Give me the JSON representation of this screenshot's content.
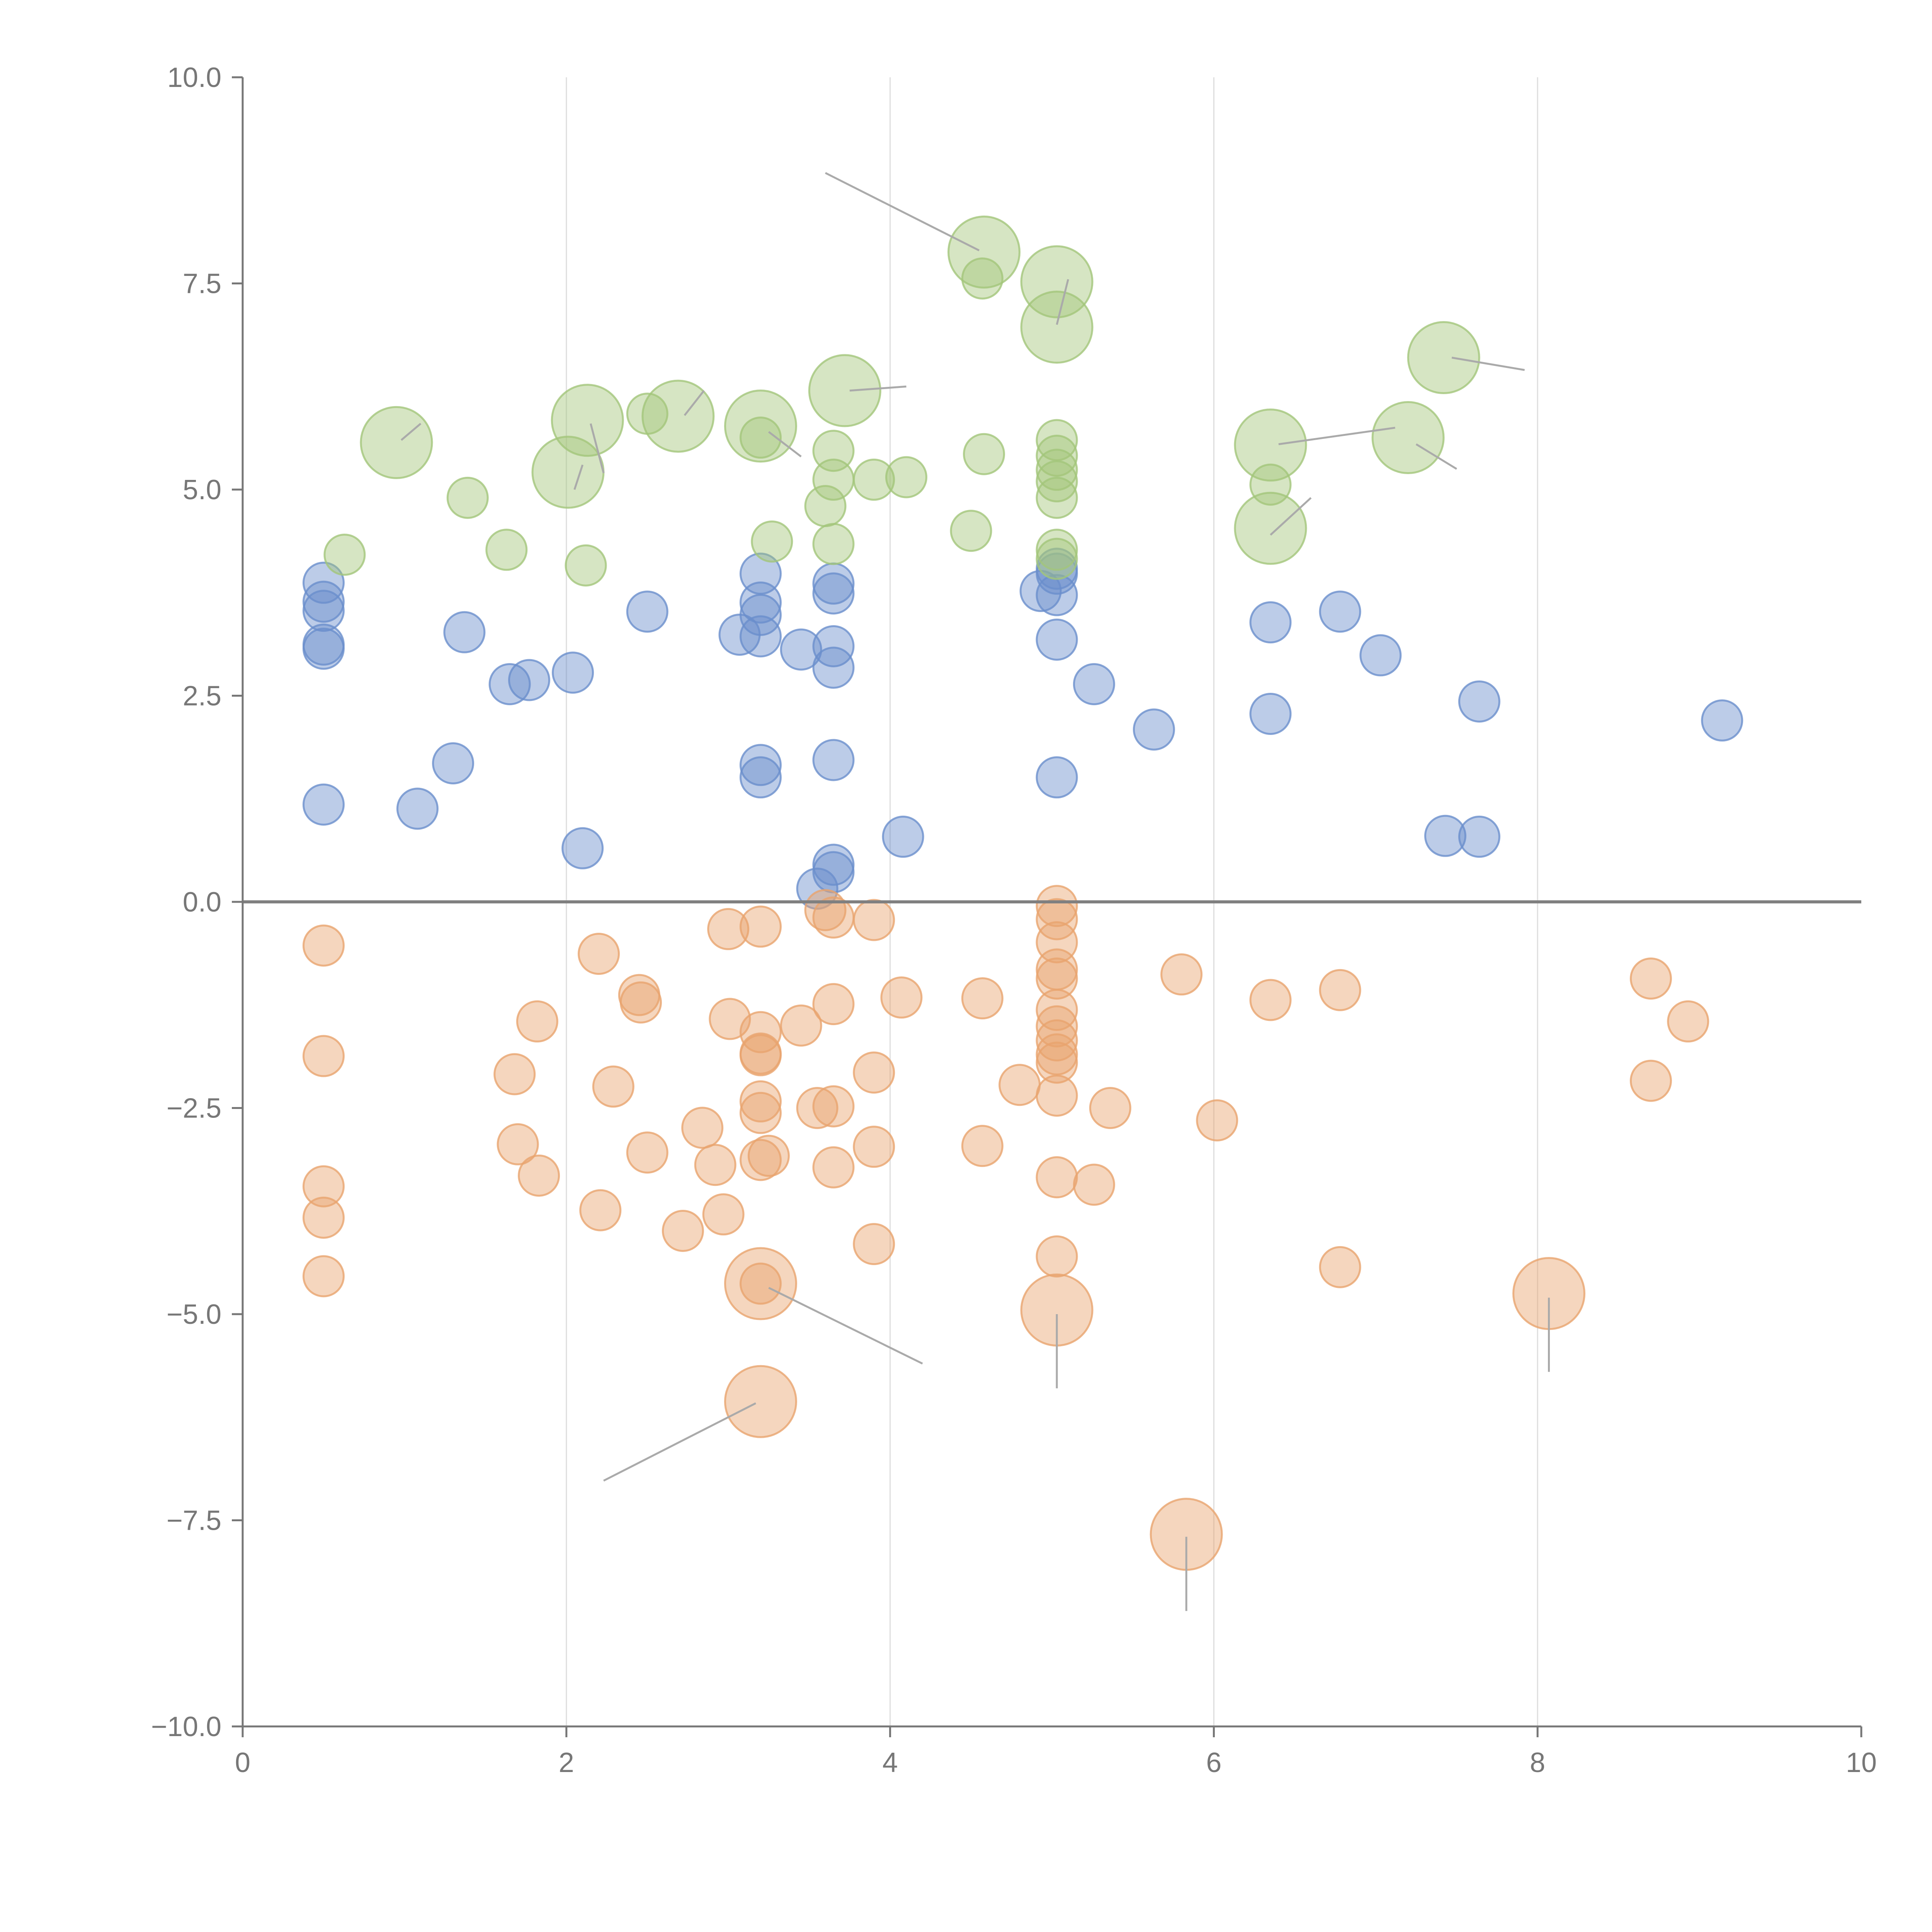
{
  "colors": {
    "blue": "#6a8fcc",
    "green": "#a3c67a",
    "orange": "#e9a46e",
    "axis": "#777777",
    "grid": "#dddddd",
    "zero_line": "#808080",
    "leader": "#aaaaaa"
  },
  "chart_data": {
    "type": "scatter",
    "title": "",
    "xlabel": "",
    "ylabel": "",
    "xlim": [
      0,
      10
    ],
    "ylim": [
      -10,
      10
    ],
    "x_ticks": [
      0,
      2,
      4,
      6,
      8,
      10
    ],
    "x_tick_labels": [
      "0",
      "2",
      "4",
      "6",
      "8",
      "10"
    ],
    "y_ticks": [
      10,
      7.5,
      5,
      2.5,
      0,
      -2.5,
      -5,
      -7.5,
      -10
    ],
    "y_tick_labels": [
      "10.0",
      "7.5",
      "5.0",
      "2.5",
      "0.0",
      "−2.5",
      "−5.0",
      "−7.5",
      "−10.0"
    ],
    "grid": "vertical",
    "reference_line_y": 0,
    "series": [
      {
        "name": "blue",
        "color_key": "blue",
        "points": [
          [
            0.5,
            3.87,
            1
          ],
          [
            0.5,
            3.64,
            1
          ],
          [
            0.5,
            3.53,
            1
          ],
          [
            0.5,
            3.12,
            1
          ],
          [
            0.5,
            3.07,
            1
          ],
          [
            0.5,
            1.18,
            1
          ],
          [
            1.08,
            1.13,
            1
          ],
          [
            1.3,
            1.68,
            1
          ],
          [
            1.37,
            3.27,
            1
          ],
          [
            1.65,
            2.64,
            1
          ],
          [
            1.77,
            2.69,
            1
          ],
          [
            2.04,
            2.78,
            1
          ],
          [
            2.1,
            0.65,
            1
          ],
          [
            2.5,
            3.52,
            1
          ],
          [
            3.07,
            3.24,
            1
          ],
          [
            3.2,
            3.98,
            1
          ],
          [
            3.2,
            3.63,
            1
          ],
          [
            3.2,
            3.48,
            1
          ],
          [
            3.2,
            3.22,
            1
          ],
          [
            3.2,
            1.66,
            1
          ],
          [
            3.2,
            1.51,
            1
          ],
          [
            3.45,
            3.06,
            1
          ],
          [
            3.55,
            0.16,
            1
          ],
          [
            3.65,
            3.86,
            1
          ],
          [
            3.65,
            3.74,
            1
          ],
          [
            3.65,
            3.1,
            1
          ],
          [
            3.65,
            2.84,
            1
          ],
          [
            3.65,
            1.72,
            1
          ],
          [
            3.65,
            0.45,
            1
          ],
          [
            3.65,
            0.36,
            1
          ],
          [
            4.08,
            0.79,
            1
          ],
          [
            4.93,
            3.77,
            1
          ],
          [
            5.03,
            4.04,
            1
          ],
          [
            5.03,
            3.98,
            1
          ],
          [
            5.03,
            3.72,
            1
          ],
          [
            5.03,
            3.18,
            1
          ],
          [
            5.03,
            1.51,
            1
          ],
          [
            5.26,
            2.64,
            1
          ],
          [
            5.63,
            2.09,
            1
          ],
          [
            6.35,
            3.39,
            1
          ],
          [
            6.35,
            2.28,
            1
          ],
          [
            6.78,
            3.52,
            1
          ],
          [
            7.03,
            2.99,
            1
          ],
          [
            7.43,
            0.8,
            1
          ],
          [
            7.64,
            0.79,
            1
          ],
          [
            7.64,
            2.43,
            1
          ],
          [
            9.14,
            2.2,
            1
          ]
        ]
      },
      {
        "name": "green",
        "color_key": "green",
        "points": [
          [
            0.63,
            4.21,
            1
          ],
          [
            0.95,
            5.57,
            2
          ],
          [
            1.39,
            4.9,
            1
          ],
          [
            1.63,
            4.27,
            1
          ],
          [
            2.01,
            5.21,
            2
          ],
          [
            2.12,
            4.08,
            1
          ],
          [
            2.13,
            5.84,
            2
          ],
          [
            2.5,
            5.92,
            1
          ],
          [
            2.69,
            5.89,
            2
          ],
          [
            3.2,
            5.77,
            2
          ],
          [
            3.2,
            5.63,
            1
          ],
          [
            3.27,
            4.37,
            1
          ],
          [
            3.6,
            4.8,
            1
          ],
          [
            3.65,
            5.47,
            1
          ],
          [
            3.65,
            5.12,
            1
          ],
          [
            3.65,
            4.34,
            1
          ],
          [
            3.72,
            6.2,
            2
          ],
          [
            3.9,
            5.12,
            1
          ],
          [
            4.1,
            5.15,
            1
          ],
          [
            4.5,
            4.5,
            1
          ],
          [
            4.57,
            7.56,
            1
          ],
          [
            4.58,
            7.88,
            2
          ],
          [
            4.58,
            5.43,
            1
          ],
          [
            5.03,
            5.6,
            1
          ],
          [
            5.03,
            5.41,
            1
          ],
          [
            5.03,
            5.24,
            1
          ],
          [
            5.03,
            5.1,
            1
          ],
          [
            5.03,
            4.9,
            1
          ],
          [
            5.03,
            4.27,
            1
          ],
          [
            5.03,
            4.16,
            1
          ],
          [
            5.03,
            7.52,
            2
          ],
          [
            5.03,
            6.97,
            2
          ],
          [
            6.35,
            5.54,
            2
          ],
          [
            6.35,
            5.06,
            1
          ],
          [
            6.35,
            4.53,
            2
          ],
          [
            7.2,
            5.63,
            2
          ],
          [
            7.42,
            6.6,
            2
          ]
        ]
      },
      {
        "name": "orange",
        "color_key": "orange",
        "points": [
          [
            0.5,
            -0.53,
            1
          ],
          [
            0.5,
            -1.87,
            1
          ],
          [
            0.5,
            -3.45,
            1
          ],
          [
            0.5,
            -3.83,
            1
          ],
          [
            0.5,
            -4.54,
            1
          ],
          [
            1.68,
            -2.09,
            1
          ],
          [
            1.7,
            -2.94,
            1
          ],
          [
            1.82,
            -1.45,
            1
          ],
          [
            1.83,
            -3.32,
            1
          ],
          [
            2.2,
            -0.63,
            1
          ],
          [
            2.21,
            -3.74,
            1
          ],
          [
            2.29,
            -2.24,
            1
          ],
          [
            2.45,
            -1.13,
            1
          ],
          [
            2.46,
            -1.22,
            1
          ],
          [
            2.5,
            -3.04,
            1
          ],
          [
            2.72,
            -3.99,
            1
          ],
          [
            2.84,
            -2.74,
            1
          ],
          [
            2.92,
            -3.19,
            1
          ],
          [
            2.97,
            -3.79,
            1
          ],
          [
            3.0,
            -0.33,
            1
          ],
          [
            3.01,
            -1.42,
            1
          ],
          [
            3.2,
            -0.3,
            1
          ],
          [
            3.2,
            -1.58,
            1
          ],
          [
            3.2,
            -1.84,
            1
          ],
          [
            3.2,
            -1.86,
            1
          ],
          [
            3.2,
            -2.42,
            1
          ],
          [
            3.2,
            -2.56,
            1
          ],
          [
            3.2,
            -3.13,
            1
          ],
          [
            3.25,
            -3.08,
            1
          ],
          [
            3.2,
            -4.63,
            1
          ],
          [
            3.2,
            -4.63,
            2
          ],
          [
            3.2,
            -6.06,
            2
          ],
          [
            3.45,
            -1.5,
            1
          ],
          [
            3.55,
            -2.5,
            1
          ],
          [
            3.6,
            -0.1,
            1
          ],
          [
            3.65,
            -0.19,
            1
          ],
          [
            3.65,
            -1.24,
            1
          ],
          [
            3.65,
            -2.48,
            1
          ],
          [
            3.65,
            -3.22,
            1
          ],
          [
            3.9,
            -0.22,
            1
          ],
          [
            3.9,
            -2.07,
            1
          ],
          [
            3.9,
            -2.97,
            1
          ],
          [
            3.9,
            -4.15,
            1
          ],
          [
            4.07,
            -1.16,
            1
          ],
          [
            4.57,
            -1.17,
            1
          ],
          [
            4.57,
            -2.96,
            1
          ],
          [
            4.8,
            -2.22,
            1
          ],
          [
            5.03,
            -0.05,
            1
          ],
          [
            5.03,
            -0.21,
            1
          ],
          [
            5.03,
            -0.49,
            1
          ],
          [
            5.03,
            -0.82,
            1
          ],
          [
            5.03,
            -0.93,
            1
          ],
          [
            5.03,
            -1.31,
            1
          ],
          [
            5.03,
            -1.51,
            1
          ],
          [
            5.03,
            -1.68,
            1
          ],
          [
            5.03,
            -1.85,
            1
          ],
          [
            5.03,
            -1.95,
            1
          ],
          [
            5.03,
            -2.35,
            1
          ],
          [
            5.03,
            -3.34,
            1
          ],
          [
            5.03,
            -4.3,
            1
          ],
          [
            5.03,
            -4.95,
            2
          ],
          [
            5.26,
            -3.43,
            1
          ],
          [
            5.36,
            -2.5,
            1
          ],
          [
            5.8,
            -0.88,
            1
          ],
          [
            5.83,
            -7.67,
            2
          ],
          [
            6.02,
            -2.65,
            1
          ],
          [
            6.35,
            -1.19,
            1
          ],
          [
            6.78,
            -1.07,
            1
          ],
          [
            6.78,
            -4.43,
            1
          ],
          [
            8.07,
            -4.75,
            2
          ],
          [
            8.7,
            -0.93,
            1
          ],
          [
            8.7,
            -2.17,
            1
          ],
          [
            8.93,
            -1.45,
            1
          ]
        ]
      }
    ],
    "leader_lines": [
      [
        3.6,
        8.84,
        4.55,
        7.9
      ],
      [
        5.03,
        7.0,
        5.1,
        7.55
      ],
      [
        0.98,
        5.6,
        1.1,
        5.8
      ],
      [
        2.05,
        5.0,
        2.1,
        5.3
      ],
      [
        2.15,
        5.8,
        2.23,
        5.2
      ],
      [
        2.73,
        5.9,
        2.85,
        6.2
      ],
      [
        3.25,
        5.7,
        3.45,
        5.4
      ],
      [
        3.75,
        6.2,
        4.1,
        6.25
      ],
      [
        6.4,
        5.55,
        7.12,
        5.75
      ],
      [
        7.25,
        5.55,
        7.5,
        5.25
      ],
      [
        7.47,
        6.6,
        7.92,
        6.45
      ],
      [
        6.35,
        4.45,
        6.6,
        4.9
      ],
      [
        3.25,
        -4.68,
        4.2,
        -5.6
      ],
      [
        3.17,
        -6.08,
        2.23,
        -7.02
      ],
      [
        5.03,
        -5.0,
        5.03,
        -5.9
      ],
      [
        5.83,
        -7.7,
        5.83,
        -8.6
      ],
      [
        8.07,
        -4.8,
        8.07,
        -5.7
      ]
    ]
  }
}
